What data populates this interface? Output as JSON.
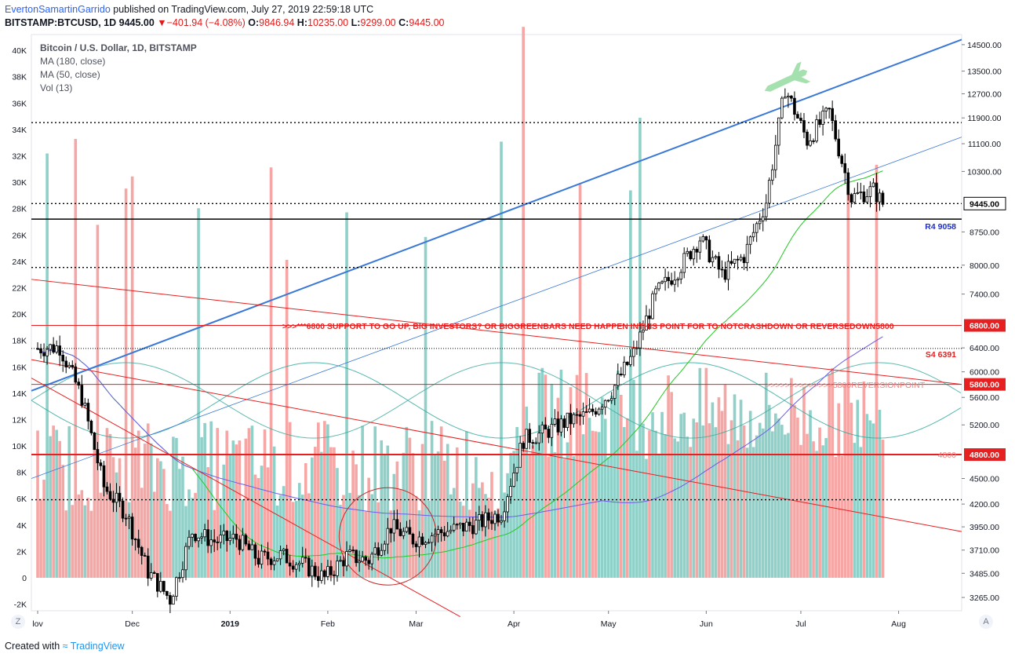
{
  "header": {
    "author": "EvertonSamartinGarrido",
    "published": " published on TradingView.com, July 27, 2019 22:59:18 UTC",
    "symbol": "BITSTAMP:BTCUSD, 1D",
    "last": "9445.00",
    "change": "−401.94 (−4.08%)",
    "o_label": "O:",
    "o_val": "9846.94",
    "h_label": "H:",
    "h_val": "10235.00",
    "l_label": "L:",
    "l_val": "9299.00",
    "c_label": "C:",
    "c_val": "9445.00"
  },
  "legend": {
    "title": "Bitcoin / U.S. Dollar, 1D, BITSTAMP",
    "ma180": "MA (180, close)",
    "ma50": "MA (50, close)",
    "vol": "Vol (13)"
  },
  "footer": {
    "created": "Created with",
    "brand": "TradingView"
  },
  "corners": {
    "left": "Z",
    "right": "A"
  },
  "colors": {
    "up": "#26a69a",
    "down": "#ef5350",
    "vol_up": "#8fd1c9",
    "vol_down": "#f6a6a4",
    "trend_blue": "#3a78d8",
    "red_line": "#e62020",
    "ma50": "#23c823",
    "ma180": "#6c5ce7"
  },
  "chart_data": {
    "type": "candlestick",
    "title": "Bitcoin / U.S. Dollar, 1D, BITSTAMP",
    "x_ticks": [
      "lov",
      "Dec",
      "2019",
      "Feb",
      "Mar",
      "Apr",
      "May",
      "Jun",
      "Jul",
      "Aug"
    ],
    "price_ticks": [
      "14500.00",
      "13500.00",
      "12700.00",
      "11900.00",
      "11100.00",
      "10300.00",
      "8750.00",
      "8000.00",
      "7400.00",
      "6400.00",
      "6000.00",
      "5600.00",
      "5200.00",
      "4500.00",
      "4200.00",
      "3950.00",
      "3710.00",
      "3485.00",
      "3265.00"
    ],
    "volume_ticks": [
      "40K",
      "38K",
      "36K",
      "34K",
      "32K",
      "30K",
      "28K",
      "26K",
      "24K",
      "22K",
      "20K",
      "18K",
      "16K",
      "14K",
      "12K",
      "10K",
      "8K",
      "6K",
      "4K",
      "2K",
      "0",
      "-2K"
    ],
    "price_axis": "log",
    "price_range": [
      3150,
      14900
    ],
    "volume_range": [
      -2500,
      41200
    ],
    "last_price": 9445.0,
    "candles_weekly_close": [
      [
        "2018-11-01",
        6390
      ],
      [
        "2018-11-08",
        6420
      ],
      [
        "2018-11-15",
        5600
      ],
      [
        "2018-11-22",
        4400
      ],
      [
        "2018-11-29",
        4100
      ],
      [
        "2018-12-06",
        3500
      ],
      [
        "2018-12-13",
        3250
      ],
      [
        "2018-12-20",
        3900
      ],
      [
        "2018-12-27",
        3800
      ],
      [
        "2019-01-03",
        3830
      ],
      [
        "2019-01-10",
        3620
      ],
      [
        "2019-01-17",
        3660
      ],
      [
        "2019-01-24",
        3570
      ],
      [
        "2019-01-31",
        3440
      ],
      [
        "2019-02-07",
        3650
      ],
      [
        "2019-02-14",
        3610
      ],
      [
        "2019-02-21",
        3950
      ],
      [
        "2019-02-28",
        3820
      ],
      [
        "2019-03-07",
        3880
      ],
      [
        "2019-03-14",
        3930
      ],
      [
        "2019-03-21",
        3990
      ],
      [
        "2019-03-28",
        4100
      ],
      [
        "2019-04-04",
        5000
      ],
      [
        "2019-04-11",
        5100
      ],
      [
        "2019-04-18",
        5250
      ],
      [
        "2019-04-25",
        5350
      ],
      [
        "2019-05-02",
        5700
      ],
      [
        "2019-05-09",
        6300
      ],
      [
        "2019-05-16",
        7400
      ],
      [
        "2019-05-23",
        7900
      ],
      [
        "2019-05-30",
        8600
      ],
      [
        "2019-06-06",
        7800
      ],
      [
        "2019-06-13",
        8200
      ],
      [
        "2019-06-20",
        9500
      ],
      [
        "2019-06-26",
        12900
      ],
      [
        "2019-07-03",
        11200
      ],
      [
        "2019-07-10",
        12100
      ],
      [
        "2019-07-17",
        9600
      ],
      [
        "2019-07-24",
        9800
      ],
      [
        "2019-07-27",
        9445
      ]
    ],
    "horizontal_levels": [
      {
        "price": 9058,
        "label": "R4 9058",
        "color": "#2030c0"
      },
      {
        "price": 6800,
        "label": "6800.00",
        "color": "#e62020"
      },
      {
        "price": 6391,
        "label": "S4   6391",
        "color": "#e62020"
      },
      {
        "price": 5800,
        "label": "5800.00",
        "color": "#e62020"
      },
      {
        "price": 4800,
        "label": "4800.00",
        "color": "#e62020"
      }
    ],
    "annotations": [
      ">>>***6800 SUPPORT TO GO UP, BIG INVESTORS? OR BIGGREENBARS NEED HAPPEN INTHIS POINT FOR TO NOTCRASHDOWN OR REVERSEDOWN5800",
      ">>>>>>>>>>>>>>5800REVERSIONPOINT",
      "4800"
    ]
  }
}
